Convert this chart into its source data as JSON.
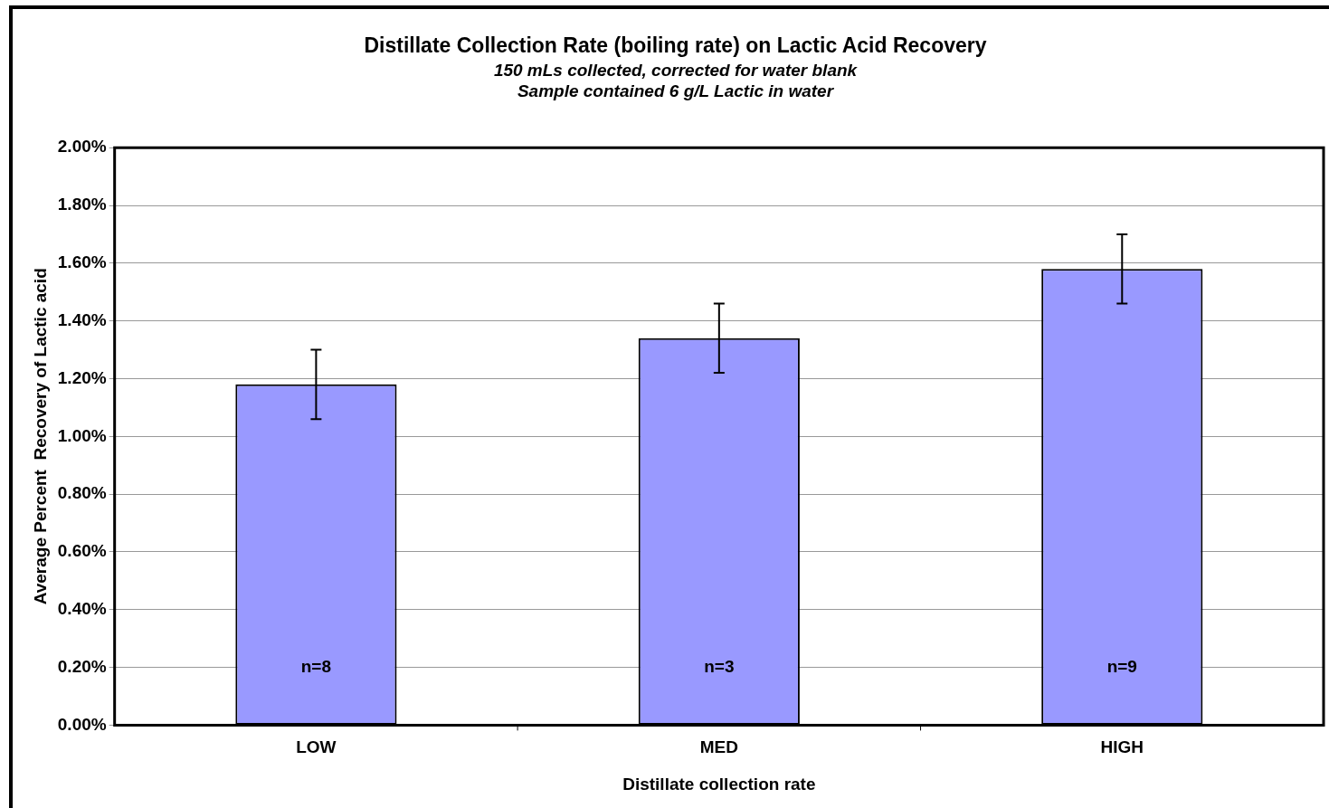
{
  "chart_data": {
    "type": "bar",
    "title": "Distillate Collection Rate (boiling rate) on Lactic Acid Recovery",
    "subtitle": "150 mLs collected, corrected for water blank\nSample contained 6 g/L Lactic in water",
    "xlabel": "Distillate collection rate",
    "ylabel": "Average Percent  Recovery of Lactic acid",
    "categories": [
      "LOW",
      "MED",
      "HIGH"
    ],
    "values": [
      1.18,
      1.34,
      1.58
    ],
    "errors": [
      0.12,
      0.12,
      0.12
    ],
    "color": "#9999ff",
    "ylim": [
      0,
      2
    ],
    "yticks": [
      {
        "value": 0,
        "label": "0.00%"
      },
      {
        "value": 0.2,
        "label": "0.20%"
      },
      {
        "value": 0.4,
        "label": "0.40%"
      },
      {
        "value": 0.6,
        "label": "0.60%"
      },
      {
        "value": 0.8,
        "label": "0.80%"
      },
      {
        "value": 1,
        "label": "1.00%"
      },
      {
        "value": 1.2,
        "label": "1.20%"
      },
      {
        "value": 1.4,
        "label": "1.40%"
      },
      {
        "value": 1.6,
        "label": "1.60%"
      },
      {
        "value": 1.8,
        "label": "1.80%"
      },
      {
        "value": 2,
        "label": "2.00%"
      }
    ],
    "grid": "y",
    "annotations": [
      "n=8",
      "n=3",
      "n=9"
    ]
  }
}
